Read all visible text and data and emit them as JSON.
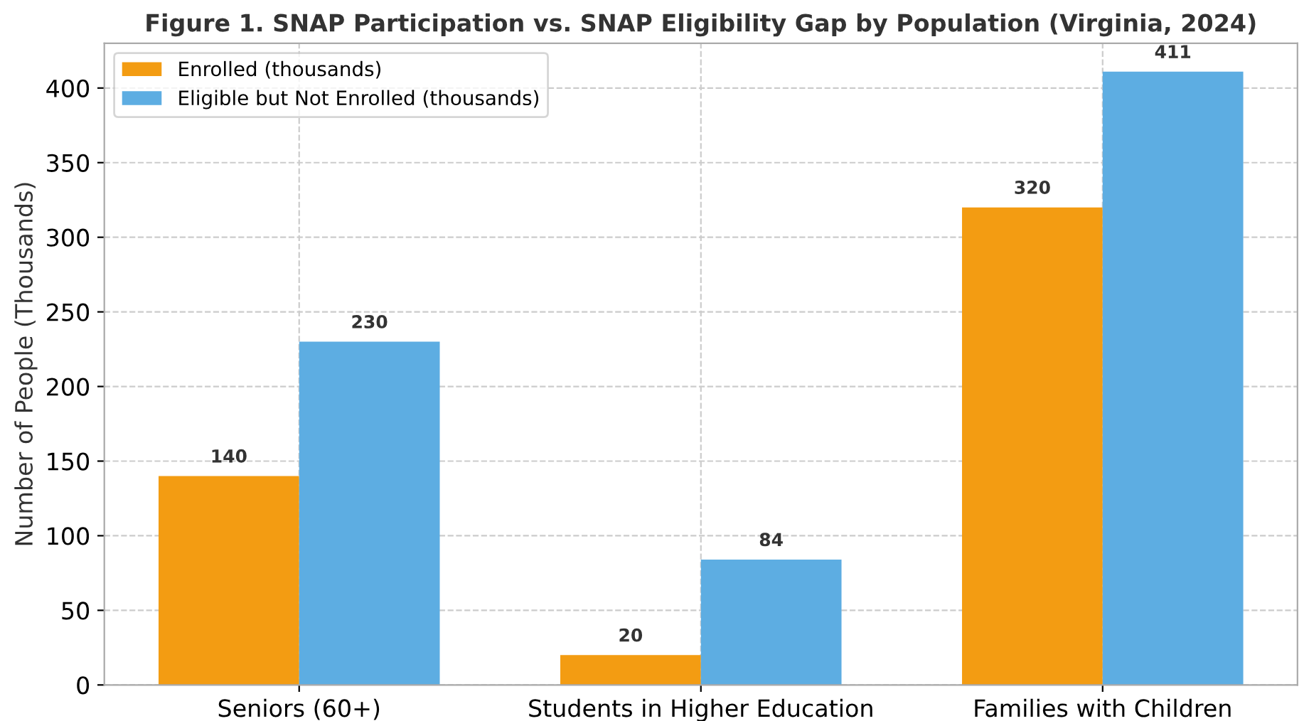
{
  "chart_data": {
    "type": "bar",
    "title": "Figure 1. SNAP Participation vs. SNAP Eligibility Gap by Population (Virginia, 2024)",
    "ylabel": "Number of People (Thousands)",
    "categories": [
      "Seniors (60+)",
      "Students in Higher Education",
      "Families with Children"
    ],
    "series": [
      {
        "name": "Enrolled (thousands)",
        "color": "#f39c12",
        "values": [
          140,
          20,
          320
        ]
      },
      {
        "name": "Eligible but Not Enrolled (thousands)",
        "color": "#5dade2",
        "values": [
          230,
          84,
          411
        ]
      }
    ],
    "ylim": [
      0,
      430
    ],
    "yticks": [
      0,
      50,
      100,
      150,
      200,
      250,
      300,
      350,
      400
    ],
    "grid": true,
    "legend": "top left",
    "data_labels": true
  }
}
